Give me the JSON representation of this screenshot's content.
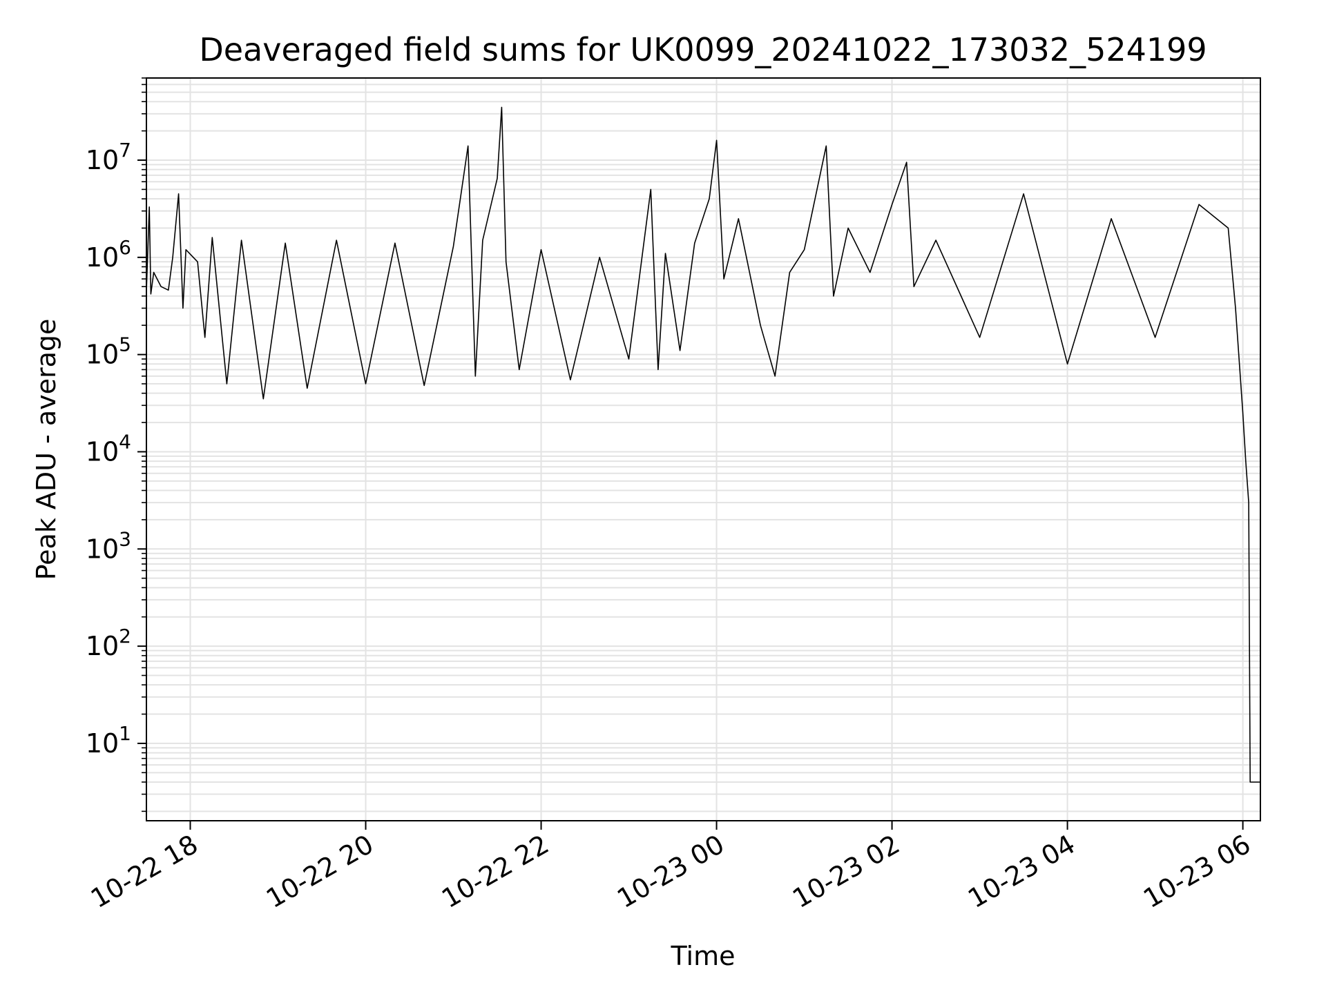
{
  "chart_data": {
    "type": "line",
    "title": "Deaveraged field sums for UK0099_20241022_173032_524199",
    "xlabel": "Time",
    "ylabel": "Peak ADU - average",
    "yscale": "log",
    "ylim": [
      1.6,
      70000000
    ],
    "xlim": [
      "2024-10-22 17:30",
      "2024-10-23 06:12"
    ],
    "grid": true,
    "x_ticks": [
      {
        "t": "2024-10-22 18:00",
        "label": "10-22 18"
      },
      {
        "t": "2024-10-22 20:00",
        "label": "10-22 20"
      },
      {
        "t": "2024-10-22 22:00",
        "label": "10-22 22"
      },
      {
        "t": "2024-10-23 00:00",
        "label": "10-23 00"
      },
      {
        "t": "2024-10-23 02:00",
        "label": "10-23 02"
      },
      {
        "t": "2024-10-23 04:00",
        "label": "10-23 04"
      },
      {
        "t": "2024-10-23 06:00",
        "label": "10-23 06"
      }
    ],
    "y_ticks": [
      {
        "value": 10,
        "base": "10",
        "exp": "1"
      },
      {
        "value": 100,
        "base": "10",
        "exp": "2"
      },
      {
        "value": 1000,
        "base": "10",
        "exp": "3"
      },
      {
        "value": 10000,
        "base": "10",
        "exp": "4"
      },
      {
        "value": 100000,
        "base": "10",
        "exp": "5"
      },
      {
        "value": 1000000,
        "base": "10",
        "exp": "6"
      },
      {
        "value": 10000000,
        "base": "10",
        "exp": "7"
      }
    ],
    "series": [
      {
        "color": "#000000",
        "description_note": "",
        "x": [
          "2024-10-22 17:30",
          "2024-10-22 17:32",
          "2024-10-22 17:33",
          "2024-10-22 17:35",
          "2024-10-22 17:40",
          "2024-10-22 17:45",
          "2024-10-22 17:48",
          "2024-10-22 17:52",
          "2024-10-22 17:55",
          "2024-10-22 17:57",
          "2024-10-22 18:05",
          "2024-10-22 18:10",
          "2024-10-22 18:15",
          "2024-10-22 18:25",
          "2024-10-22 18:35",
          "2024-10-22 18:50",
          "2024-10-22 19:05",
          "2024-10-22 19:20",
          "2024-10-22 19:40",
          "2024-10-22 20:00",
          "2024-10-22 20:20",
          "2024-10-22 20:40",
          "2024-10-22 21:00",
          "2024-10-22 21:10",
          "2024-10-22 21:15",
          "2024-10-22 21:20",
          "2024-10-22 21:30",
          "2024-10-22 21:33",
          "2024-10-22 21:36",
          "2024-10-22 21:45",
          "2024-10-22 22:00",
          "2024-10-22 22:20",
          "2024-10-22 22:40",
          "2024-10-22 23:00",
          "2024-10-22 23:15",
          "2024-10-22 23:20",
          "2024-10-22 23:25",
          "2024-10-22 23:35",
          "2024-10-22 23:45",
          "2024-10-22 23:55",
          "2024-10-23 00:00",
          "2024-10-23 00:05",
          "2024-10-23 00:15",
          "2024-10-23 00:30",
          "2024-10-23 00:40",
          "2024-10-23 00:50",
          "2024-10-23 01:00",
          "2024-10-23 01:15",
          "2024-10-23 01:20",
          "2024-10-23 01:30",
          "2024-10-23 01:45",
          "2024-10-23 02:00",
          "2024-10-23 02:10",
          "2024-10-23 02:15",
          "2024-10-23 02:30",
          "2024-10-23 03:00",
          "2024-10-23 03:30",
          "2024-10-23 04:00",
          "2024-10-23 04:30",
          "2024-10-23 05:00",
          "2024-10-23 05:30",
          "2024-10-23 05:50",
          "2024-10-23 05:55",
          "2024-10-23 06:00",
          "2024-10-23 06:02",
          "2024-10-23 06:04",
          "2024-10-23 06:05",
          "2024-10-23 06:12"
        ],
        "y": [
          450000,
          3300000,
          420000,
          700000,
          500000,
          460000,
          1000000,
          4500000,
          300000,
          1200000,
          900000,
          150000,
          1600000,
          50000,
          1500000,
          35000,
          1400000,
          45000,
          1500000,
          50000,
          1400000,
          48000,
          1300000,
          14000000,
          60000,
          1500000,
          6500000,
          35000000,
          900000,
          70000,
          1200000,
          55000,
          1000000,
          90000,
          5000000,
          70000,
          1100000,
          110000,
          1400000,
          4000000,
          16000000,
          600000,
          2500000,
          200000,
          60000,
          700000,
          1200000,
          14000000,
          400000,
          2000000,
          700000,
          3500000,
          9500000,
          500000,
          1500000,
          150000,
          4500000,
          80000,
          2500000,
          150000,
          3500000,
          2000000,
          300000,
          25000,
          8000,
          3000,
          4,
          4
        ]
      }
    ]
  }
}
